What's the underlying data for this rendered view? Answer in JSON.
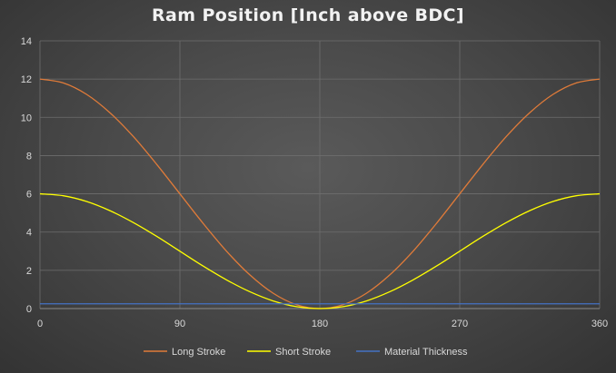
{
  "chart_data": {
    "type": "line",
    "title": "Ram Position [Inch above BDC]",
    "xlabel": "",
    "ylabel": "",
    "xlim": [
      0,
      360
    ],
    "ylim": [
      0,
      14
    ],
    "xticks": [
      0,
      90,
      180,
      270,
      360
    ],
    "yticks": [
      0,
      2,
      4,
      6,
      8,
      10,
      12,
      14
    ],
    "grid": true,
    "legend_position": "bottom",
    "x": [
      0,
      15,
      30,
      45,
      60,
      75,
      90,
      105,
      120,
      135,
      150,
      165,
      180,
      195,
      210,
      225,
      240,
      255,
      270,
      285,
      300,
      315,
      330,
      345,
      360
    ],
    "series": [
      {
        "name": "Long Stroke",
        "color": "#e07b39",
        "values": [
          12.0,
          11.8,
          11.2,
          10.24,
          9.0,
          7.55,
          6.0,
          4.45,
          3.0,
          1.76,
          0.8,
          0.2,
          0.0,
          0.2,
          0.8,
          1.76,
          3.0,
          4.45,
          6.0,
          7.55,
          9.0,
          10.24,
          11.2,
          11.8,
          12.0
        ]
      },
      {
        "name": "Short Stroke",
        "color": "#ffff00",
        "values": [
          6.0,
          5.9,
          5.6,
          5.12,
          4.5,
          3.78,
          3.0,
          2.22,
          1.5,
          0.88,
          0.4,
          0.1,
          0.0,
          0.1,
          0.4,
          0.88,
          1.5,
          2.22,
          3.0,
          3.78,
          4.5,
          5.12,
          5.6,
          5.9,
          6.0
        ]
      },
      {
        "name": "Material Thickness",
        "color": "#4472c4",
        "values": [
          0.25,
          0.25,
          0.25,
          0.25,
          0.25,
          0.25,
          0.25,
          0.25,
          0.25,
          0.25,
          0.25,
          0.25,
          0.25,
          0.25,
          0.25,
          0.25,
          0.25,
          0.25,
          0.25,
          0.25,
          0.25,
          0.25,
          0.25,
          0.25,
          0.25
        ]
      }
    ]
  }
}
